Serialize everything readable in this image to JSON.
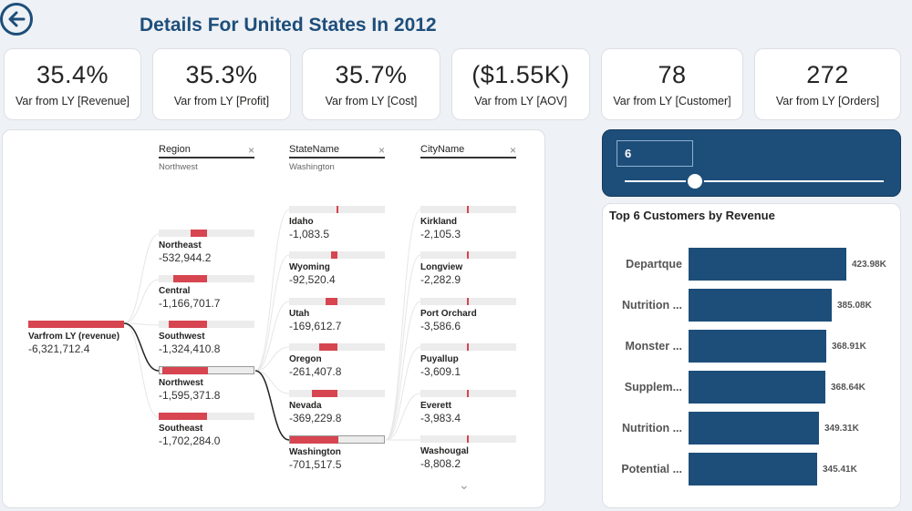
{
  "page": {
    "title": "Details For United States In 2012"
  },
  "kpis": [
    {
      "value": "35.4%",
      "label": "Var from LY [Revenue]"
    },
    {
      "value": "35.3%",
      "label": "Var from LY [Profit]"
    },
    {
      "value": "35.7%",
      "label": "Var from LY [Cost]"
    },
    {
      "value": "($1.55K)",
      "label": "Var from LY [AOV]"
    },
    {
      "value": "78",
      "label": "Var from LY [Customer]"
    },
    {
      "value": "272",
      "label": "Var from LY [Orders]"
    }
  ],
  "decomp": {
    "columns": [
      {
        "header": "Region",
        "selection": "Northwest"
      },
      {
        "header": "StateName",
        "selection": "Washington"
      },
      {
        "header": "CityName",
        "selection": ""
      }
    ],
    "root": {
      "name": "Varfrom LY (revenue)",
      "value": "-6,321,712.4"
    },
    "regions": [
      {
        "name": "Northeast",
        "value": "-532,944.2"
      },
      {
        "name": "Central",
        "value": "-1,166,701.7"
      },
      {
        "name": "Southwest",
        "value": "-1,324,410.8"
      },
      {
        "name": "Northwest",
        "value": "-1,595,371.8"
      },
      {
        "name": "Southeast",
        "value": "-1,702,284.0"
      }
    ],
    "states": [
      {
        "name": "Idaho",
        "value": "-1,083.5"
      },
      {
        "name": "Wyoming",
        "value": "-92,520.4"
      },
      {
        "name": "Utah",
        "value": "-169,612.7"
      },
      {
        "name": "Oregon",
        "value": "-261,407.8"
      },
      {
        "name": "Nevada",
        "value": "-369,229.8"
      },
      {
        "name": "Washington",
        "value": "-701,517.5"
      }
    ],
    "cities": [
      {
        "name": "Kirkland",
        "value": "-2,105.3"
      },
      {
        "name": "Longview",
        "value": "-2,282.9"
      },
      {
        "name": "Port Orchard",
        "value": "-3,586.6"
      },
      {
        "name": "Puyallup",
        "value": "-3,609.1"
      },
      {
        "name": "Everett",
        "value": "-3,983.4"
      },
      {
        "name": "Washougal",
        "value": "-8,808.2"
      }
    ]
  },
  "slider": {
    "value": "6",
    "level": 0.27
  },
  "top_customers": {
    "title": "Top 6 Customers by Revenue",
    "customers": [
      {
        "name": "Departque",
        "value": 423.98,
        "label": "423.98K"
      },
      {
        "name": "Nutrition ...",
        "value": 385.08,
        "label": "385.08K"
      },
      {
        "name": "Monster ...",
        "value": 368.91,
        "label": "368.91K"
      },
      {
        "name": "Supplem...",
        "value": 368.64,
        "label": "368.64K"
      },
      {
        "name": "Nutrition ...",
        "value": 349.31,
        "label": "349.31K"
      },
      {
        "name": "Potential ...",
        "value": 345.41,
        "label": "345.41K"
      }
    ]
  },
  "colors": {
    "accent": "#1d4e7a",
    "negative": "#d64550",
    "track": "#ececec"
  }
}
